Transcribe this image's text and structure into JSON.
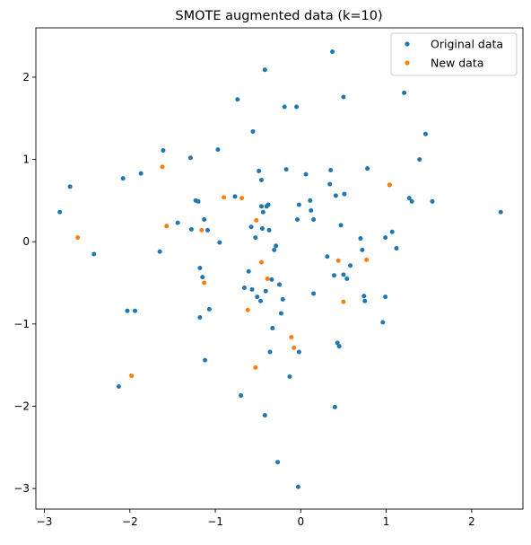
{
  "chart_data": {
    "type": "scatter",
    "title": "SMOTE augmented data (k=10)",
    "xlabel": "",
    "ylabel": "",
    "xlim": [
      -3.1,
      2.6
    ],
    "ylim": [
      -3.25,
      2.6
    ],
    "xticks": [
      -3,
      -2,
      -1,
      0,
      1,
      2
    ],
    "yticks": [
      -3,
      -2,
      -1,
      0,
      1,
      2
    ],
    "grid": false,
    "legend_position": "top-right",
    "series": [
      {
        "name": "Original data",
        "color": "#1f77b4",
        "points": [
          [
            -2.82,
            0.36
          ],
          [
            -2.7,
            0.67
          ],
          [
            -2.42,
            -0.15
          ],
          [
            -2.13,
            -1.76
          ],
          [
            -2.08,
            0.77
          ],
          [
            -2.03,
            -0.84
          ],
          [
            -1.94,
            -0.84
          ],
          [
            -1.87,
            0.83
          ],
          [
            -1.65,
            -0.12
          ],
          [
            -1.61,
            1.11
          ],
          [
            -1.44,
            0.23
          ],
          [
            -1.29,
            1.02
          ],
          [
            -1.28,
            0.15
          ],
          [
            -1.23,
            0.5
          ],
          [
            -1.2,
            0.49
          ],
          [
            -1.18,
            -0.92
          ],
          [
            -1.18,
            -0.32
          ],
          [
            -1.15,
            -0.43
          ],
          [
            -1.13,
            0.27
          ],
          [
            -1.12,
            -1.44
          ],
          [
            -1.09,
            0.14
          ],
          [
            -1.07,
            -0.82
          ],
          [
            -0.97,
            1.12
          ],
          [
            -0.95,
            -0.01
          ],
          [
            -0.77,
            0.55
          ],
          [
            -0.74,
            1.73
          ],
          [
            -0.7,
            -1.87
          ],
          [
            -0.66,
            -0.56
          ],
          [
            -0.61,
            -0.36
          ],
          [
            -0.58,
            0.18
          ],
          [
            -0.57,
            -0.58
          ],
          [
            -0.56,
            1.34
          ],
          [
            -0.53,
            0.05
          ],
          [
            -0.51,
            -0.67
          ],
          [
            -0.49,
            0.86
          ],
          [
            -0.47,
            -0.72
          ],
          [
            -0.46,
            0.43
          ],
          [
            -0.46,
            0.75
          ],
          [
            -0.45,
            0.16
          ],
          [
            -0.44,
            0.36
          ],
          [
            -0.42,
            2.09
          ],
          [
            -0.42,
            -2.11
          ],
          [
            -0.41,
            -0.6
          ],
          [
            -0.4,
            0.43
          ],
          [
            -0.38,
            0.45
          ],
          [
            -0.37,
            0.14
          ],
          [
            -0.36,
            -1.34
          ],
          [
            -0.34,
            -0.46
          ],
          [
            -0.33,
            -1.05
          ],
          [
            -0.31,
            -0.1
          ],
          [
            -0.29,
            -0.05
          ],
          [
            -0.27,
            -2.68
          ],
          [
            -0.25,
            -0.52
          ],
          [
            -0.23,
            -0.87
          ],
          [
            -0.21,
            -0.7
          ],
          [
            -0.19,
            1.64
          ],
          [
            -0.17,
            0.88
          ],
          [
            -0.13,
            -1.64
          ],
          [
            -0.05,
            1.64
          ],
          [
            -0.04,
            0.27
          ],
          [
            -0.03,
            -2.98
          ],
          [
            -0.02,
            -1.34
          ],
          [
            -0.02,
            0.45
          ],
          [
            0.06,
            0.82
          ],
          [
            0.11,
            0.5
          ],
          [
            0.12,
            0.38
          ],
          [
            0.15,
            0.27
          ],
          [
            0.15,
            -0.63
          ],
          [
            0.31,
            -0.18
          ],
          [
            0.34,
            0.7
          ],
          [
            0.35,
            0.87
          ],
          [
            0.37,
            2.31
          ],
          [
            0.39,
            -0.41
          ],
          [
            0.4,
            -2.01
          ],
          [
            0.41,
            0.56
          ],
          [
            0.43,
            -1.23
          ],
          [
            0.45,
            -1.27
          ],
          [
            0.47,
            0.2
          ],
          [
            0.5,
            -0.4
          ],
          [
            0.5,
            1.76
          ],
          [
            0.51,
            0.58
          ],
          [
            0.54,
            -0.45
          ],
          [
            0.58,
            -0.29
          ],
          [
            0.7,
            0.04
          ],
          [
            0.72,
            -0.1
          ],
          [
            0.74,
            -0.66
          ],
          [
            0.75,
            -0.72
          ],
          [
            0.78,
            0.89
          ],
          [
            0.96,
            -0.98
          ],
          [
            0.99,
            0.05
          ],
          [
            0.99,
            -0.67
          ],
          [
            1.04,
            0.69
          ],
          [
            1.07,
            0.12
          ],
          [
            1.12,
            -0.08
          ],
          [
            1.21,
            1.81
          ],
          [
            1.27,
            0.53
          ],
          [
            1.3,
            0.49
          ],
          [
            1.39,
            1.0
          ],
          [
            1.46,
            1.31
          ],
          [
            1.54,
            0.49
          ],
          [
            2.34,
            0.36
          ]
        ]
      },
      {
        "name": "New data",
        "color": "#ff7f0e",
        "points": [
          [
            -2.61,
            0.05
          ],
          [
            -1.98,
            -1.63
          ],
          [
            -1.62,
            0.91
          ],
          [
            -1.57,
            0.19
          ],
          [
            -1.16,
            0.14
          ],
          [
            -1.13,
            -0.5
          ],
          [
            -0.9,
            0.54
          ],
          [
            -0.69,
            0.53
          ],
          [
            -0.62,
            -0.83
          ],
          [
            -0.52,
            0.26
          ],
          [
            -0.53,
            -1.53
          ],
          [
            -0.46,
            -0.25
          ],
          [
            -0.39,
            -0.45
          ],
          [
            -0.11,
            -1.16
          ],
          [
            -0.08,
            -1.29
          ],
          [
            0.44,
            -0.23
          ],
          [
            0.5,
            -0.73
          ],
          [
            0.77,
            -0.22
          ],
          [
            1.04,
            0.69
          ]
        ]
      }
    ]
  }
}
